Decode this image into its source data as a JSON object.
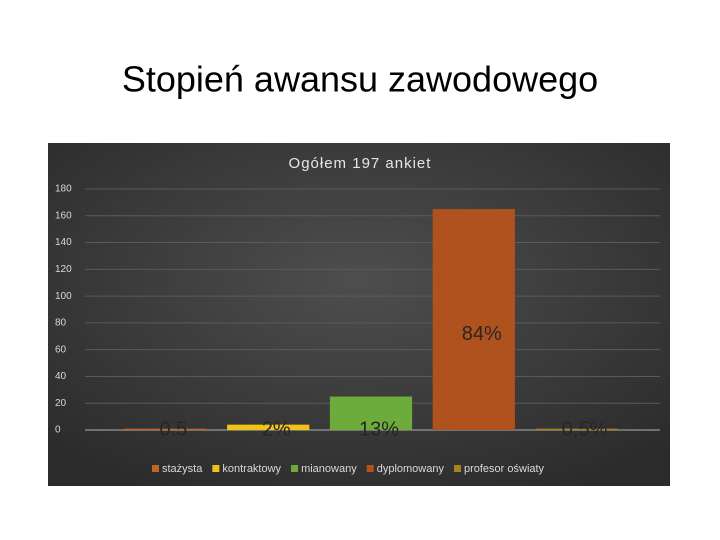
{
  "slide_title": "Stopień awansu zawodowego",
  "chart_data": {
    "type": "bar",
    "title": "Ogółem 197 ankiet",
    "categories": [
      "stażysta",
      "kontraktowy",
      "mianowany",
      "dyplomowany",
      "profesor oświaty"
    ],
    "values": [
      1,
      4,
      25,
      165,
      1
    ],
    "colors": [
      "#c0652a",
      "#f2c314",
      "#6cab3c",
      "#b0521e",
      "#a9811f"
    ],
    "annotations": [
      "0.5",
      "2%",
      "13%",
      "84%",
      "0,5%"
    ],
    "ylim": [
      0,
      180
    ],
    "yticks": [
      0,
      20,
      40,
      60,
      80,
      100,
      120,
      140,
      160,
      180
    ],
    "grid": true,
    "legend": "bottom"
  }
}
